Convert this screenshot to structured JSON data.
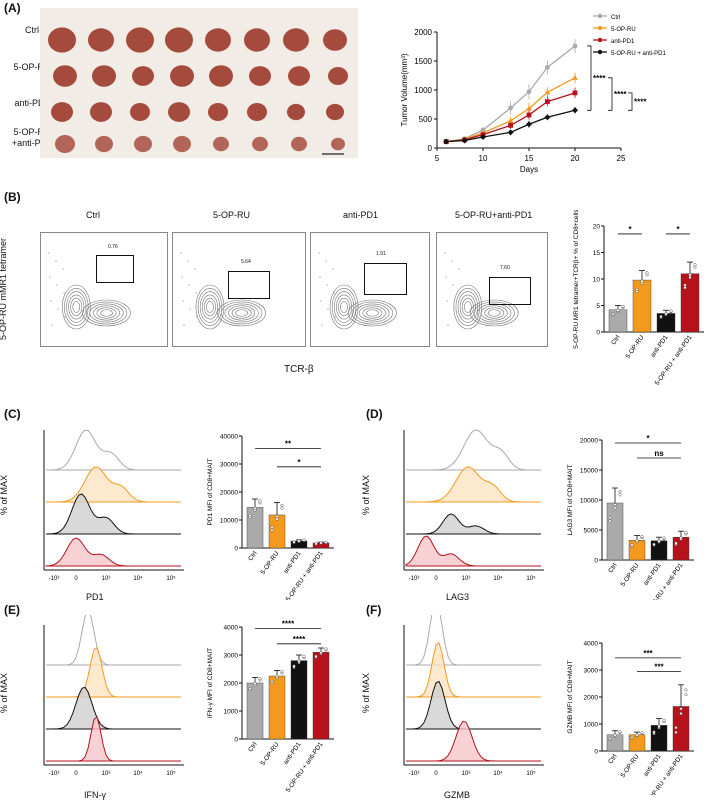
{
  "panels": {
    "a": "(A)",
    "b": "(B)",
    "c": "(C)",
    "d": "(D)",
    "e": "(E)",
    "f": "(F)"
  },
  "colors": {
    "ctrl": "#aaaaaa",
    "op": "#f39a1e",
    "anti": "#b5121b",
    "combo": "#111111",
    "tumor": "#9c3a2a"
  },
  "groups": [
    "Ctrl",
    "5-OP-RU",
    "anti-PD1",
    "5-OP-RU\n+anti-PD1"
  ],
  "groups_axis": [
    "Ctrl",
    "5-OP-RU",
    "anti-PD1",
    "5-OP-RU + anti-PD1"
  ],
  "flow_titles": [
    "Ctrl",
    "5-OP-RU",
    "anti-PD1",
    "5-OP-RU+anti-PD1"
  ],
  "flow_gates": [
    "0.76",
    "5.64",
    "1.91",
    "7.60"
  ],
  "flow_axes": {
    "y": "5-OP-RU mMR1 tetramer",
    "x": "TCR-β"
  },
  "histo_ylabel": "% of MAX",
  "histo_ticks": [
    "-10³",
    "0",
    "10³",
    "10⁴",
    "10⁵"
  ],
  "histo_xlabels": {
    "c": "PD1",
    "d": "LAG3",
    "e": "IFN-γ",
    "f": "GZMB"
  },
  "chart_data": [
    {
      "id": "A",
      "type": "line",
      "title": "",
      "xlabel": "Days",
      "ylabel": "Tumor Volume(mm³)",
      "xlim": [
        5,
        25
      ],
      "ylim": [
        0,
        2000
      ],
      "xticks": [
        5,
        10,
        15,
        20,
        25
      ],
      "yticks": [
        0,
        500,
        1000,
        1500,
        2000
      ],
      "x": [
        6,
        8,
        10,
        13,
        15,
        17,
        20
      ],
      "series": [
        {
          "name": "Ctrl",
          "color": "#aaaaaa",
          "marker": "circle",
          "values": [
            110,
            160,
            310,
            690,
            970,
            1390,
            1760
          ],
          "err": [
            15,
            20,
            50,
            110,
            130,
            120,
            120
          ]
        },
        {
          "name": "5-OP-RU",
          "color": "#f39a1e",
          "marker": "triangle",
          "values": [
            110,
            150,
            260,
            470,
            680,
            960,
            1210
          ],
          "err": [
            15,
            20,
            40,
            70,
            100,
            90,
            90
          ]
        },
        {
          "name": "anti-PD1",
          "color": "#b5121b",
          "marker": "square",
          "values": [
            110,
            140,
            230,
            390,
            570,
            800,
            950
          ],
          "err": [
            15,
            20,
            35,
            60,
            80,
            80,
            90
          ]
        },
        {
          "name": "5-OP-RU + anti-PD1",
          "color": "#111111",
          "marker": "diamond",
          "values": [
            110,
            130,
            190,
            270,
            410,
            530,
            650
          ],
          "err": [
            10,
            15,
            30,
            40,
            60,
            50,
            60
          ]
        }
      ],
      "significance": [
        "****",
        "****",
        "****"
      ]
    },
    {
      "id": "B",
      "type": "bar",
      "ylabel": "5-OP-RU MR1 tetramer+TCRβ+ % of CD8+cells",
      "ylim": [
        0,
        20
      ],
      "yticks": [
        0,
        5,
        10,
        15,
        20
      ],
      "categories": [
        "Ctrl",
        "5-OP-RU",
        "anti-PD1",
        "5-OP-RU + anti-PD1"
      ],
      "values": [
        4.2,
        9.8,
        3.5,
        11.0
      ],
      "err": [
        0.8,
        1.8,
        0.6,
        2.2
      ],
      "colors": [
        "#aaaaaa",
        "#f39a1e",
        "#111111",
        "#b5121b"
      ],
      "significance": [
        "*",
        "*"
      ]
    },
    {
      "id": "C",
      "type": "bar",
      "ylabel": "PD1 MFI of CD8+MAIT",
      "ylim": [
        0,
        40000
      ],
      "yticks": [
        0,
        10000,
        20000,
        30000,
        40000
      ],
      "categories": [
        "Ctrl",
        "5-OP-RU",
        "anti-PD1",
        "5-OP-RU + anti-PD1"
      ],
      "values": [
        14500,
        11800,
        2500,
        1800
      ],
      "err": [
        3000,
        4500,
        400,
        300
      ],
      "colors": [
        "#aaaaaa",
        "#f39a1e",
        "#111111",
        "#b5121b"
      ],
      "significance": [
        "**",
        "*"
      ]
    },
    {
      "id": "D",
      "type": "bar",
      "ylabel": "LAG3 MFI of CD8+MAIT",
      "ylim": [
        0,
        20000
      ],
      "yticks": [
        0,
        5000,
        10000,
        15000,
        20000
      ],
      "categories": [
        "Ctrl",
        "5-OP-RU",
        "anti-PD1",
        "5-OP-RU + anti-PD1"
      ],
      "values": [
        9500,
        3300,
        3200,
        3800
      ],
      "err": [
        2500,
        800,
        600,
        1000
      ],
      "colors": [
        "#aaaaaa",
        "#f39a1e",
        "#111111",
        "#b5121b"
      ],
      "significance": [
        "*",
        "ns"
      ]
    },
    {
      "id": "E",
      "type": "bar",
      "ylabel": "IFN-γ MFI of CD8+MAIT",
      "ylim": [
        0,
        4000
      ],
      "yticks": [
        0,
        1000,
        2000,
        3000,
        4000
      ],
      "categories": [
        "Ctrl",
        "5-OP-RU",
        "anti-PD1",
        "5-OP-RU + anti-PD1"
      ],
      "values": [
        2000,
        2250,
        2800,
        3100
      ],
      "err": [
        200,
        200,
        200,
        150
      ],
      "colors": [
        "#aaaaaa",
        "#f39a1e",
        "#111111",
        "#b5121b"
      ],
      "significance": [
        "****",
        "****"
      ]
    },
    {
      "id": "F",
      "type": "bar",
      "ylabel": "GZMB MFI of CD8+MAIT",
      "ylim": [
        0,
        4000
      ],
      "yticks": [
        0,
        1000,
        2000,
        3000,
        4000
      ],
      "categories": [
        "Ctrl",
        "5-OP-RU",
        "anti-PD1",
        "5-OP-RU + anti-PD1"
      ],
      "values": [
        600,
        600,
        950,
        1650
      ],
      "err": [
        150,
        100,
        250,
        800
      ],
      "colors": [
        "#aaaaaa",
        "#f39a1e",
        "#111111",
        "#b5121b"
      ],
      "significance": [
        "***",
        "***"
      ]
    }
  ]
}
